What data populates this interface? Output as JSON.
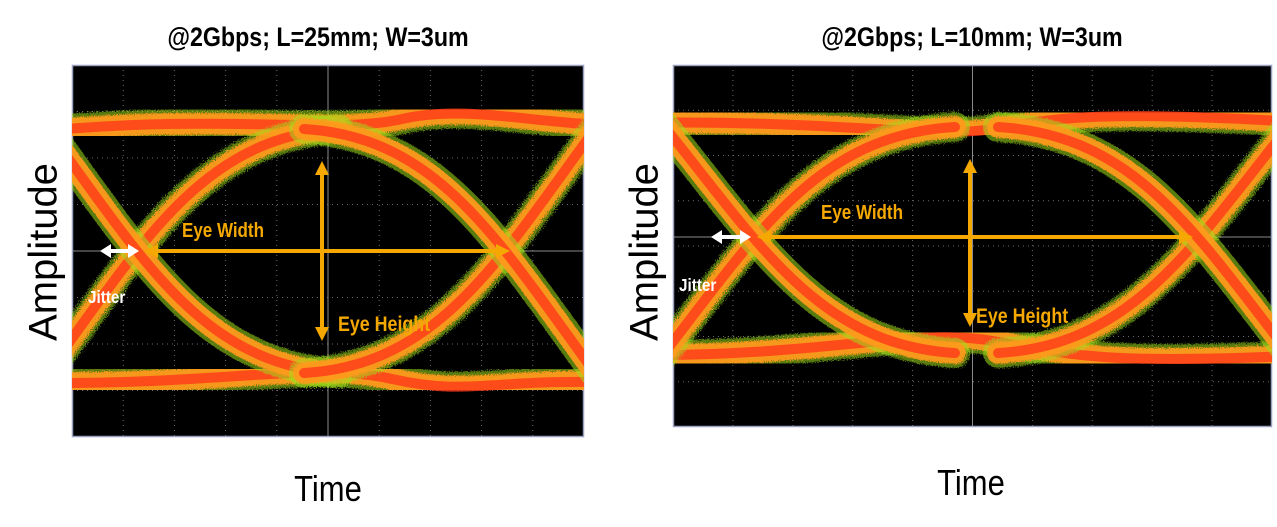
{
  "chart_data": [
    {
      "type": "eye-diagram",
      "title": "@2Gbps; L=25mm; W=3um",
      "xlabel": "Time",
      "ylabel": "Amplitude",
      "grid": true,
      "background": "#000000",
      "annotations": {
        "eye_width": "Eye Width",
        "eye_height": "Eye Height",
        "jitter": "Jitter"
      },
      "colors": {
        "trace_core": "#FF3A1A",
        "trace_mid": "#FF9A1A",
        "trace_edge": "#9FE01A",
        "arrow": "#F5A800",
        "jitter_arrow": "#FFFFFF"
      }
    },
    {
      "type": "eye-diagram",
      "title": "@2Gbps; L=10mm; W=3um",
      "xlabel": "Time",
      "ylabel": "Amplitude",
      "grid": true,
      "background": "#000000",
      "annotations": {
        "eye_width": "Eye Width",
        "eye_height": "Eye Height",
        "jitter": "Jitter"
      },
      "colors": {
        "trace_core": "#FF3A1A",
        "trace_mid": "#FF9A1A",
        "trace_edge": "#9FE01A",
        "arrow": "#F5A800",
        "jitter_arrow": "#FFFFFF"
      }
    }
  ]
}
